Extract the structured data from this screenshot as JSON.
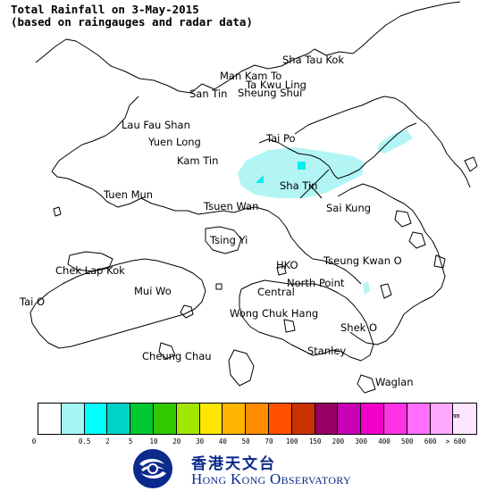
{
  "title": {
    "line1": "Total Rainfall on 3-May-2015",
    "line2": "(based on raingauges and radar data)"
  },
  "places": [
    {
      "id": "sha-tau-kok",
      "name": "Sha Tau Kok"
    },
    {
      "id": "man-kam-to",
      "name": "Man Kam To"
    },
    {
      "id": "ta-kwu-ling",
      "name": "Ta Kwu Ling"
    },
    {
      "id": "san-tin",
      "name": "San Tin"
    },
    {
      "id": "sheung-shui",
      "name": "Sheung Shui"
    },
    {
      "id": "lau-fau-shan",
      "name": "Lau Fau Shan"
    },
    {
      "id": "yuen-long",
      "name": "Yuen Long"
    },
    {
      "id": "tai-po",
      "name": "Tai Po"
    },
    {
      "id": "kam-tin",
      "name": "Kam Tin"
    },
    {
      "id": "sha-tin",
      "name": "Sha Tin"
    },
    {
      "id": "tuen-mun",
      "name": "Tuen Mun"
    },
    {
      "id": "tsuen-wan",
      "name": "Tsuen Wan"
    },
    {
      "id": "sai-kung",
      "name": "Sai Kung"
    },
    {
      "id": "tsing-yi",
      "name": "Tsing Yi"
    },
    {
      "id": "chek-lap-kok",
      "name": "Chek Lap Kok"
    },
    {
      "id": "hko",
      "name": "HKO"
    },
    {
      "id": "tseung-kwan-o",
      "name": "Tseung Kwan O"
    },
    {
      "id": "north-point",
      "name": "North Point"
    },
    {
      "id": "mui-wo",
      "name": "Mui Wo"
    },
    {
      "id": "central",
      "name": "Central"
    },
    {
      "id": "tai-o",
      "name": "Tai O"
    },
    {
      "id": "wong-chuk-hang",
      "name": "Wong Chuk Hang"
    },
    {
      "id": "shek-o",
      "name": "Shek O"
    },
    {
      "id": "stanley",
      "name": "Stanley"
    },
    {
      "id": "cheung-chau",
      "name": "Cheung Chau"
    },
    {
      "id": "waglan",
      "name": "Waglan"
    }
  ],
  "legend": {
    "unit": "mm",
    "ticks": [
      "0",
      "0.5",
      "2",
      "5",
      "10",
      "20",
      "30",
      "40",
      "50",
      "70",
      "100",
      "150",
      "200",
      "300",
      "400",
      "500",
      "600",
      "> 600"
    ],
    "colors": [
      "#ffffff",
      "#a6f5f5",
      "#00ffff",
      "#00d2c8",
      "#00c832",
      "#32c800",
      "#a0e600",
      "#ffe600",
      "#ffb400",
      "#ff8c00",
      "#ff5000",
      "#c83200",
      "#960064",
      "#c800b4",
      "#f000c8",
      "#ff32e6",
      "#ff6eff",
      "#ffaaff",
      "#ffe6ff"
    ]
  },
  "rain_color": "#b3f5f5",
  "rain_dark_color": "#00f0f0",
  "logo": {
    "zh": "香港天文台",
    "en": "Hong Kong Observatory"
  },
  "brand_color": "#0b2a8c"
}
